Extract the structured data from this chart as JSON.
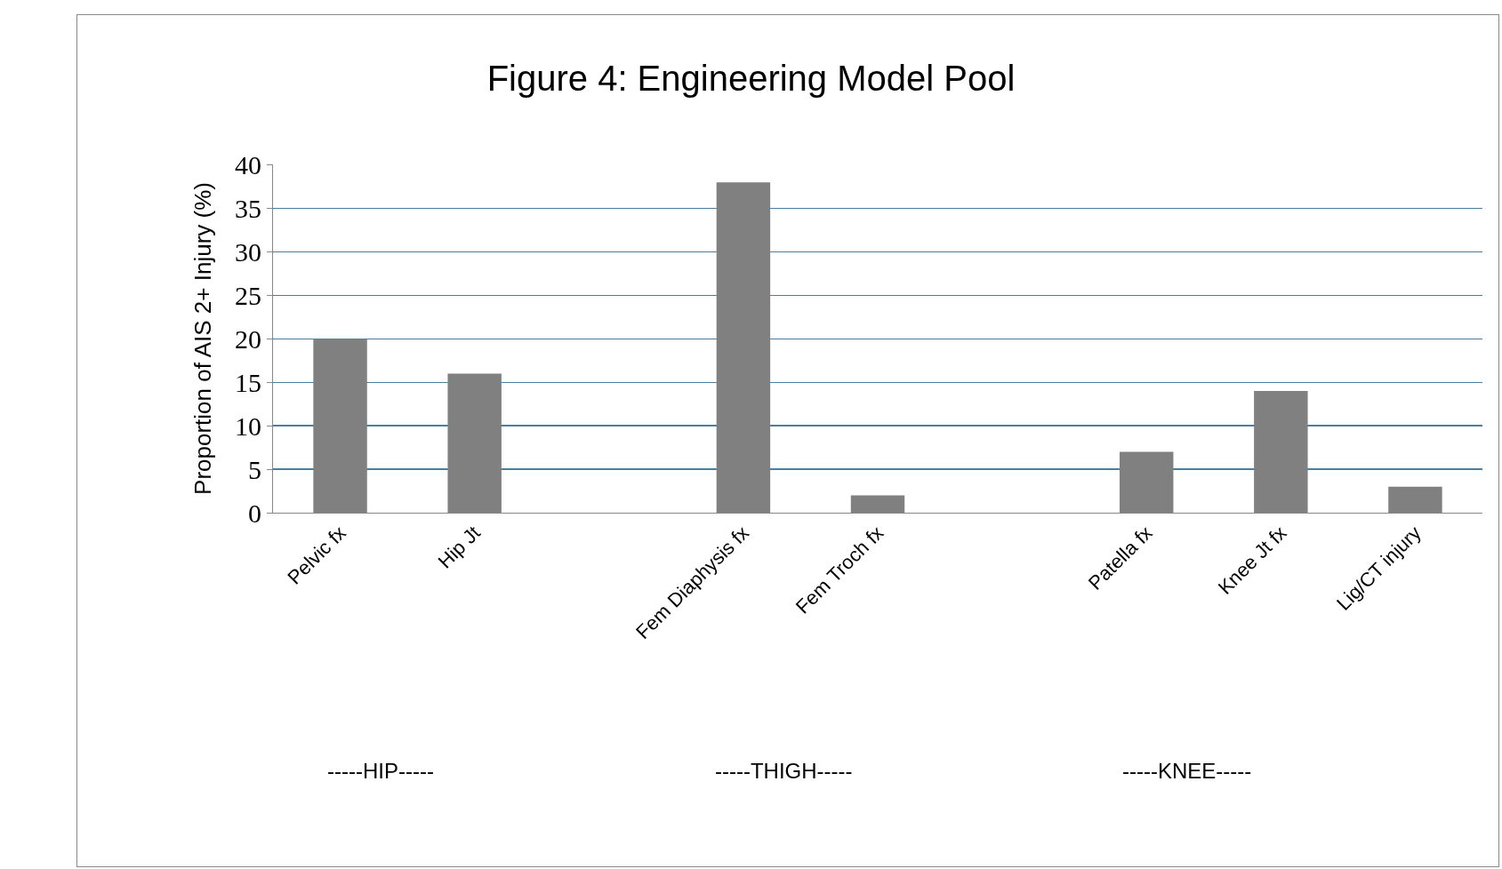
{
  "chart_data": {
    "type": "bar",
    "title": "Figure 4: Engineering Model Pool",
    "ylabel": "Proportion of AIS 2+ Injury (%)",
    "categories": [
      "Pelvic fx",
      "Hip Jt",
      null,
      "Fem Diaphysis fx",
      "Fem Troch fx",
      null,
      "Patella fx",
      "Knee Jt fx",
      "Lig/CT injury"
    ],
    "values": [
      20,
      16,
      null,
      38,
      2,
      null,
      7,
      14,
      3
    ],
    "color": "#808080",
    "ylim": [
      0,
      40
    ],
    "yticks": [
      0,
      5,
      10,
      15,
      20,
      25,
      30,
      35,
      40
    ],
    "grid": "y",
    "legend": false,
    "annotations": [
      "-----HIP-----",
      "-----THIGH-----",
      "-----KNEE-----"
    ]
  }
}
